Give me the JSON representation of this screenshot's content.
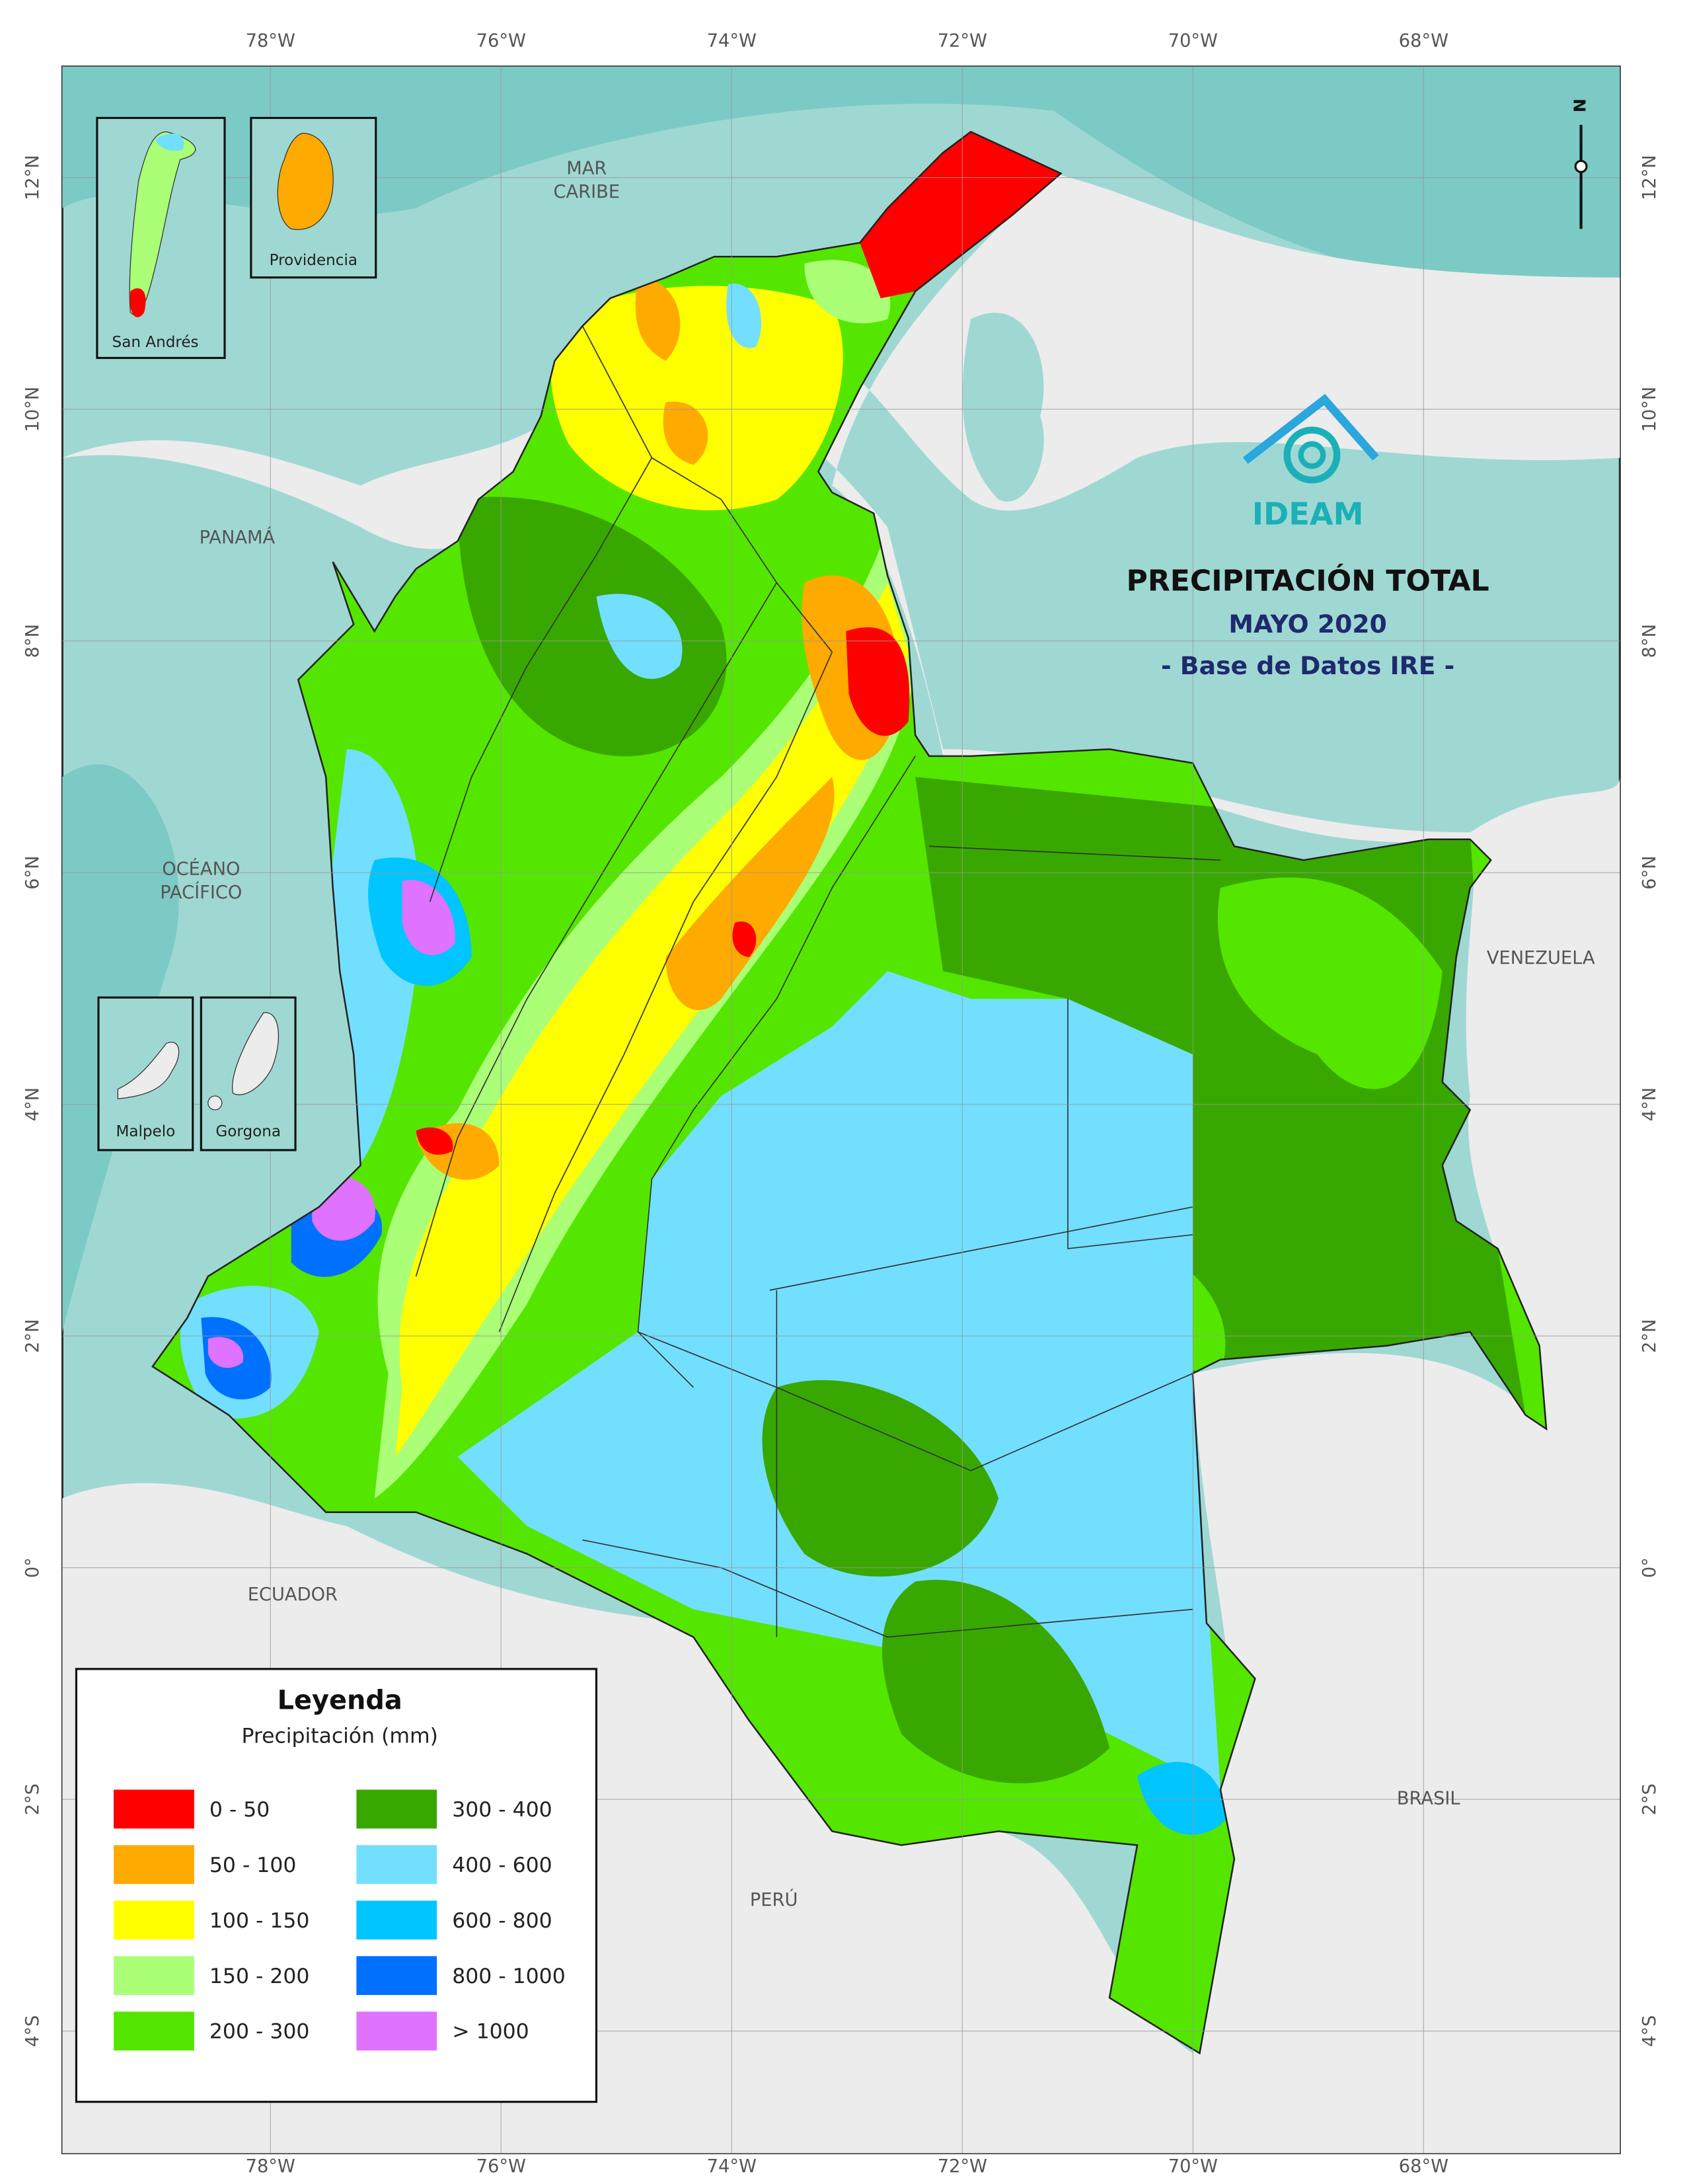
{
  "map": {
    "title": "PRECIPITACIÓN TOTAL",
    "subtitle": "MAYO 2020",
    "source": "- Base de Datos IRE -",
    "logo": "IDEAM",
    "north": "N",
    "longitudes": [
      "78°W",
      "76°W",
      "74°W",
      "72°W",
      "70°W",
      "68°W"
    ],
    "latitudes": [
      "12°N",
      "10°N",
      "8°N",
      "6°N",
      "4°N",
      "2°N",
      "0°",
      "2°S",
      "4°S"
    ],
    "places": [
      {
        "lines": [
          "MAR",
          "CARIBE"
        ]
      },
      {
        "lines": [
          "PANAMÁ"
        ]
      },
      {
        "lines": [
          "OCÉANO",
          "PACÍFICO"
        ]
      },
      {
        "lines": [
          "VENEZUELA"
        ]
      },
      {
        "lines": [
          "ECUADOR"
        ]
      },
      {
        "lines": [
          "PERÚ"
        ]
      },
      {
        "lines": [
          "BRASIL"
        ]
      }
    ],
    "insets": [
      "San Andrés",
      "Providencia",
      "Malpelo",
      "Gorgona"
    ],
    "legend": {
      "title": "Leyenda",
      "subtitle": "Precipitación (mm)",
      "items": [
        {
          "label": "0 - 50",
          "color": "#ff0000"
        },
        {
          "label": "50 - 100",
          "color": "#ffaa00"
        },
        {
          "label": "100 - 150",
          "color": "#ffff00"
        },
        {
          "label": "150 - 200",
          "color": "#aaff77"
        },
        {
          "label": "200 - 300",
          "color": "#55e600"
        },
        {
          "label": "300 - 400",
          "color": "#38a800"
        },
        {
          "label": "400 - 600",
          "color": "#73dfff"
        },
        {
          "label": "600 - 800",
          "color": "#00c5ff"
        },
        {
          "label": "800 - 1000",
          "color": "#0070ff"
        },
        {
          "label": "> 1000",
          "color": "#df73ff"
        }
      ]
    }
  }
}
